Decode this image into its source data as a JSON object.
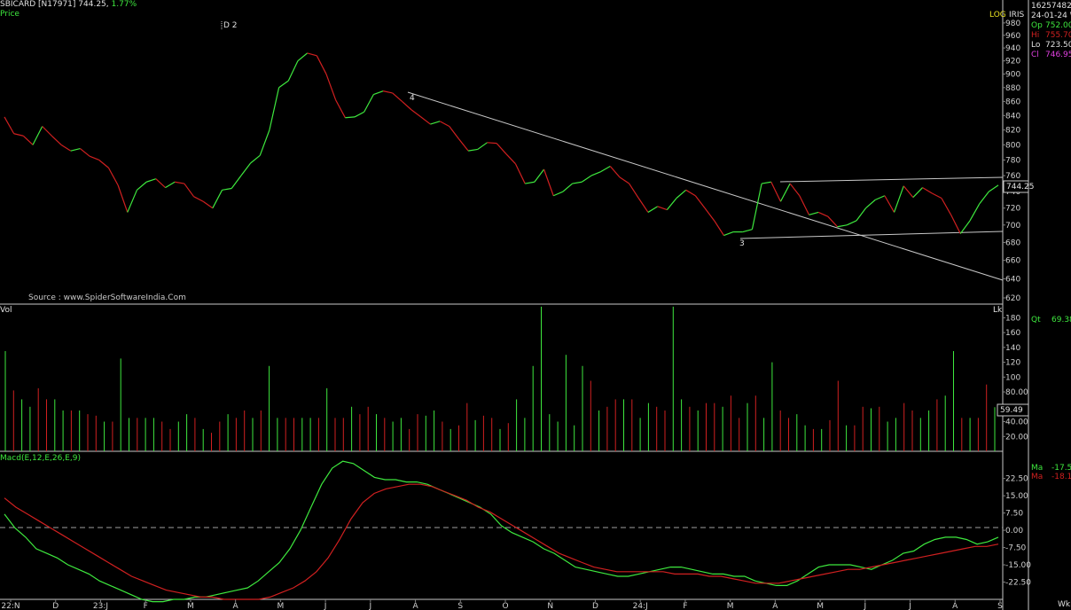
{
  "header": {
    "symbol": "SBICARD [N17971]",
    "last": "744.25,",
    "change": "1.77%"
  },
  "price_panel": {
    "label": "Price",
    "scale_mode": "LOG",
    "indicator": "IRIS",
    "source": "Source : www.SpiderSoftwareIndia.Com",
    "annotation": "D 2",
    "wave_labels": [
      "4",
      "3"
    ],
    "current_price_tag": "744.25",
    "y_ticks": [
      "980",
      "960",
      "940",
      "920",
      "900",
      "880",
      "860",
      "840",
      "820",
      "800",
      "780",
      "760",
      "740",
      "720",
      "700",
      "680",
      "660",
      "640",
      "620"
    ]
  },
  "info_box": {
    "volume_total": "16257482.00",
    "date": "24-01-24 We",
    "open_label": "Op",
    "open": "752.00",
    "high_label": "Hi",
    "high": "755.70",
    "low_label": "Lo",
    "low": "723.50",
    "close_label": "Cl",
    "close": "746.95"
  },
  "volume_panel": {
    "label": "Vol",
    "unit": "Lk",
    "qty_label": "Qt",
    "qty_value": "69.38",
    "current_tag": "59.49",
    "y_ticks": [
      "180",
      "160",
      "140",
      "120",
      "100",
      "80.00",
      "60.00",
      "40.00",
      "20.00"
    ]
  },
  "macd_panel": {
    "label": "Macd(E,12,E,26,E,9)",
    "ma1_label": "Ma",
    "ma1_value": "-17.52",
    "ma2_label": "Ma",
    "ma2_value": "-18.16",
    "y_ticks": [
      "22.50",
      "15.00",
      "7.50",
      "0.00",
      "-7.50",
      "-15.00",
      "-22.50"
    ]
  },
  "time_axis": {
    "labels": [
      "22:N",
      "D",
      "23:J",
      "F",
      "M",
      "A",
      "M",
      "J",
      "J",
      "A",
      "S",
      "O",
      "N",
      "D",
      "24:J",
      "F",
      "M",
      "A",
      "M",
      "J",
      "J",
      "A",
      "S"
    ],
    "period": "Wkl"
  },
  "colors": {
    "up": "#3ee83e",
    "down": "#d02020",
    "text": "#d0d0d0",
    "grid": "#808080",
    "close_label": "#e040e0"
  },
  "chart_data": [
    {
      "type": "line",
      "title": "Price",
      "scale": "log",
      "ylim": [
        620,
        990
      ],
      "values": [
        838,
        815,
        812,
        800,
        825,
        812,
        800,
        792,
        795,
        785,
        780,
        770,
        748,
        715,
        742,
        752,
        756,
        745,
        752,
        750,
        734,
        728,
        720,
        742,
        744,
        760,
        776,
        786,
        820,
        880,
        890,
        920,
        932,
        928,
        900,
        862,
        837,
        838,
        845,
        870,
        875,
        872,
        860,
        848,
        838,
        828,
        832,
        825,
        808,
        792,
        794,
        803,
        802,
        788,
        775,
        750,
        752,
        768,
        735,
        740,
        750,
        752,
        760,
        765,
        772,
        758,
        750,
        732,
        715,
        722,
        718,
        732,
        742,
        735,
        720,
        705,
        688,
        692,
        692,
        695,
        750,
        752,
        728,
        750,
        735,
        712,
        715,
        710,
        698,
        700,
        705,
        720,
        730,
        735,
        715,
        747,
        733,
        745,
        738,
        732,
        712,
        690,
        705,
        725,
        740,
        748
      ]
    },
    {
      "type": "bar",
      "title": "Vol",
      "ylim": [
        0,
        190
      ],
      "values": [
        135,
        82,
        70,
        60,
        85,
        70,
        70,
        55,
        55,
        55,
        50,
        48,
        40,
        40,
        125,
        45,
        45,
        45,
        45,
        40,
        30,
        40,
        50,
        45,
        30,
        25,
        40,
        50,
        45,
        55,
        45,
        55,
        115,
        45,
        45,
        45,
        45,
        45,
        45,
        85,
        45,
        45,
        60,
        50,
        60,
        50,
        45,
        40,
        45,
        30,
        50,
        48,
        55,
        40,
        30,
        35,
        65,
        42,
        48,
        45,
        30,
        38,
        70,
        45,
        115,
        195,
        50,
        40,
        130,
        35,
        115,
        95,
        55,
        60,
        70,
        70,
        70,
        45,
        65,
        60,
        55,
        195,
        70,
        60,
        55,
        65,
        65,
        60,
        75,
        45,
        65,
        75,
        45,
        120,
        55,
        45,
        50,
        35,
        30,
        30,
        42,
        95,
        35,
        35,
        60,
        58,
        60,
        40,
        45,
        65,
        55,
        45,
        55,
        70,
        75,
        135,
        45,
        45,
        45,
        90,
        59.49
      ]
    },
    {
      "type": "line",
      "title": "Macd(E,12,E,26,E,9)",
      "ylim": [
        -30,
        32
      ],
      "series": [
        {
          "values": [
            7,
            1,
            -3,
            -8,
            -10,
            -12,
            -15,
            -17,
            -19,
            -22,
            -24,
            -26,
            -28,
            -30,
            -31,
            -31,
            -30,
            -30,
            -29,
            -29,
            -28,
            -27,
            -26,
            -25,
            -22,
            -18,
            -14,
            -8,
            0,
            10,
            20,
            27,
            30,
            29,
            26,
            23,
            22,
            22,
            21,
            21,
            20,
            18,
            16,
            14,
            12,
            10,
            7,
            2,
            -1,
            -3,
            -5,
            -8,
            -10,
            -13,
            -16,
            -17,
            -18,
            -19,
            -20,
            -20,
            -19,
            -18,
            -17,
            -16,
            -16,
            -17,
            -18,
            -19,
            -19,
            -20,
            -20,
            -22,
            -23,
            -24,
            -24,
            -22,
            -19,
            -16,
            -15,
            -15,
            -15,
            -16,
            -17,
            -15,
            -13,
            -10,
            -9,
            -6,
            -4,
            -3,
            -3,
            -4,
            -6,
            -5,
            -3
          ]
        },
        {
          "values": [
            14,
            10,
            7,
            4,
            1,
            -2,
            -5,
            -8,
            -11,
            -14,
            -17,
            -20,
            -22,
            -24,
            -26,
            -27,
            -28,
            -29,
            -29,
            -30,
            -30,
            -30,
            -30,
            -29,
            -27,
            -25,
            -22,
            -18,
            -12,
            -4,
            5,
            12,
            16,
            18,
            19,
            20,
            20,
            19,
            17,
            15,
            13,
            10,
            8,
            5,
            2,
            -1,
            -4,
            -7,
            -10,
            -12,
            -14,
            -16,
            -17,
            -18,
            -18,
            -18,
            -18,
            -18,
            -19,
            -19,
            -19,
            -20,
            -20,
            -21,
            -22,
            -23,
            -23,
            -23,
            -22,
            -21,
            -20,
            -19,
            -18,
            -17,
            -17,
            -16,
            -15,
            -14,
            -13,
            -12,
            -11,
            -10,
            -9,
            -8,
            -7,
            -7,
            -6
          ]
        }
      ]
    }
  ]
}
